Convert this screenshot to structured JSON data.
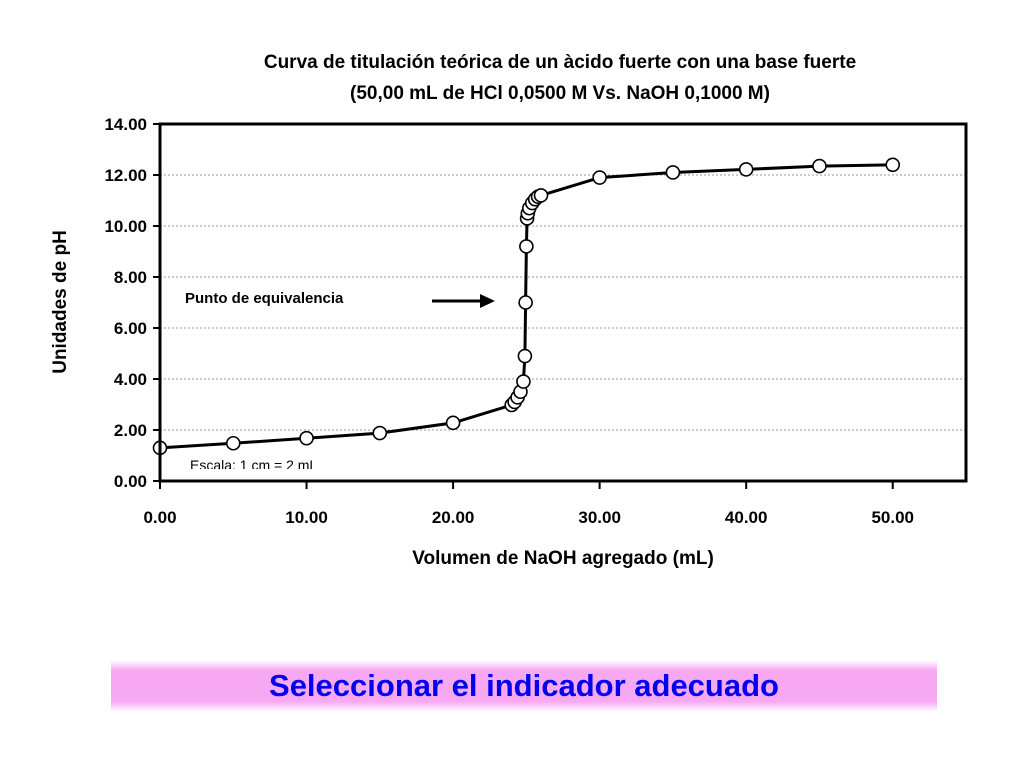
{
  "chart_data": {
    "type": "scatter",
    "title": [
      "Curva de titulación teórica de un àcido fuerte con una base fuerte",
      "(50,00 mL de HCl 0,0500 M Vs. NaOH 0,1000 M)"
    ],
    "xlabel": "Volumen de NaOH agregado (mL)",
    "ylabel": "Unidades de pH",
    "xlim": [
      0,
      55
    ],
    "ylim": [
      0,
      14
    ],
    "xticks": [
      "0.00",
      "10.00",
      "20.00",
      "30.00",
      "40.00",
      "50.00"
    ],
    "yticks": [
      "0.00",
      "2.00",
      "4.00",
      "6.00",
      "8.00",
      "10.00",
      "12.00",
      "14.00"
    ],
    "grid": "horizontal dotted",
    "series": [
      {
        "marker": "open-circle",
        "line": "smoothed",
        "x": [
          0,
          5,
          10,
          15,
          20,
          24,
          24.2,
          24.4,
          24.6,
          24.8,
          24.9,
          24.95,
          25,
          25.05,
          25.1,
          25.2,
          25.4,
          25.6,
          25.8,
          26,
          30,
          35,
          40,
          45,
          50
        ],
        "y": [
          1.3,
          1.48,
          1.68,
          1.88,
          2.28,
          2.98,
          3.1,
          3.28,
          3.5,
          3.9,
          4.9,
          7.0,
          9.2,
          10.3,
          10.5,
          10.7,
          10.9,
          11.05,
          11.15,
          11.2,
          11.9,
          12.1,
          12.22,
          12.35,
          12.4
        ]
      }
    ],
    "annotations": [
      {
        "text": "Punto de equivalencia",
        "arrow_to": [
          25,
          7.0
        ]
      },
      {
        "text": "Escala: 1 cm = 2 mL"
      }
    ]
  },
  "banner": {
    "text": "Seleccionar el indicador adecuado"
  },
  "colors": {
    "banner_pink": "#f6a9f2",
    "banner_text": "#0000ee",
    "line": "#000000"
  }
}
